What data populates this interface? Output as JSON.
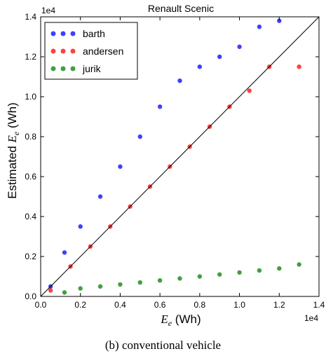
{
  "caption": "(b) conventional vehicle",
  "chart_data": {
    "type": "scatter",
    "title": "Renault Scenic",
    "xlabel": "E_e (Wh)",
    "ylabel": "Estimated E_e (Wh)",
    "xlim": [
      0,
      14000
    ],
    "ylim": [
      0,
      14000
    ],
    "xticks": [
      "0.0",
      "0.2",
      "0.4",
      "0.6",
      "0.8",
      "1.0",
      "1.2",
      "1.4"
    ],
    "yticks": [
      "0.0",
      "0.2",
      "0.4",
      "0.6",
      "0.8",
      "1.0",
      "1.2",
      "1.4"
    ],
    "x_exponent": "1e4",
    "y_exponent": "1e4",
    "grid": false,
    "legend_position": "top-left",
    "reference_line": "y = x",
    "series": [
      {
        "name": "barth",
        "color": "#0000ff",
        "points": [
          [
            500,
            500
          ],
          [
            1200,
            2200
          ],
          [
            2000,
            3500
          ],
          [
            3000,
            5000
          ],
          [
            4000,
            6500
          ],
          [
            5000,
            8000
          ],
          [
            6000,
            9500
          ],
          [
            7000,
            10800
          ],
          [
            8000,
            11500
          ],
          [
            9000,
            12000
          ],
          [
            10000,
            12500
          ],
          [
            11000,
            13500
          ],
          [
            12000,
            13800
          ]
        ]
      },
      {
        "name": "andersen",
        "color": "#ff0000",
        "points": [
          [
            500,
            300
          ],
          [
            1500,
            1500
          ],
          [
            2500,
            2500
          ],
          [
            3500,
            3500
          ],
          [
            4500,
            4500
          ],
          [
            5500,
            5500
          ],
          [
            6500,
            6500
          ],
          [
            7500,
            7500
          ],
          [
            8500,
            8500
          ],
          [
            9500,
            9500
          ],
          [
            10500,
            10300
          ],
          [
            11500,
            11500
          ],
          [
            13000,
            11500
          ]
        ]
      },
      {
        "name": "jurik",
        "color": "#008000",
        "points": [
          [
            1200,
            200
          ],
          [
            2000,
            400
          ],
          [
            3000,
            500
          ],
          [
            4000,
            600
          ],
          [
            5000,
            700
          ],
          [
            6000,
            800
          ],
          [
            7000,
            900
          ],
          [
            8000,
            1000
          ],
          [
            9000,
            1100
          ],
          [
            10000,
            1200
          ],
          [
            11000,
            1300
          ],
          [
            12000,
            1400
          ],
          [
            13000,
            1600
          ]
        ]
      }
    ]
  }
}
